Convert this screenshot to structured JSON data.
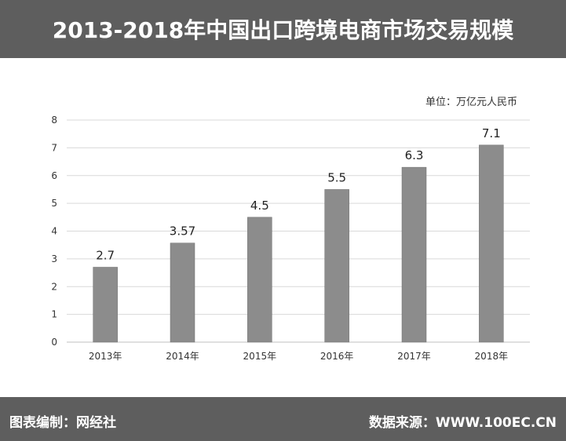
{
  "header": {
    "title": "2013-2018年中国出口跨境电商市场交易规模"
  },
  "unit_label": "单位：万亿元人民币",
  "footer": {
    "credit": "图表编制：网经社",
    "source": "数据来源：WWW.100EC.CN"
  },
  "colors": {
    "header_bg": "#5e5e5e",
    "bar": "#8c8c8c",
    "grid": "#d9d9d9",
    "text": "#333333"
  },
  "chart_data": {
    "type": "bar",
    "categories": [
      "2013年",
      "2014年",
      "2015年",
      "2016年",
      "2017年",
      "2018年"
    ],
    "values": [
      2.7,
      3.57,
      4.5,
      5.5,
      6.3,
      7.1
    ],
    "data_labels": [
      "2.7",
      "3.57",
      "4.5",
      "5.5",
      "6.3",
      "7.1"
    ],
    "y_ticks": [
      "0",
      "1",
      "2",
      "3",
      "4",
      "5",
      "6",
      "7",
      "8"
    ],
    "ylim": [
      0,
      8
    ],
    "grid": true,
    "legend": "none"
  }
}
